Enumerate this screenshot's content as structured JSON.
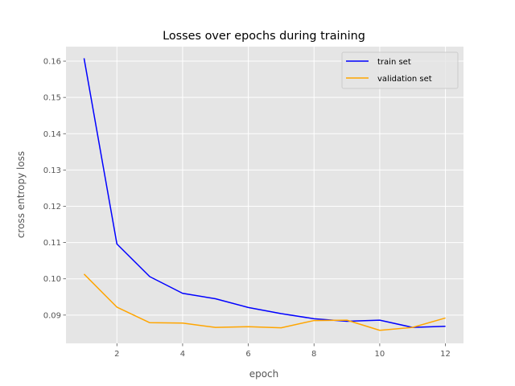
{
  "chart_data": {
    "type": "line",
    "title": "Losses over epochs during training",
    "xlabel": "epoch",
    "ylabel": "cross entropy loss",
    "x": [
      1,
      2,
      3,
      4,
      5,
      6,
      7,
      8,
      9,
      10,
      11,
      12
    ],
    "xlim": [
      0.45,
      12.55
    ],
    "ylim": [
      0.0822,
      0.164
    ],
    "xticks": [
      2,
      4,
      6,
      8,
      10,
      12
    ],
    "yticks": [
      0.09,
      0.1,
      0.11,
      0.12,
      0.13,
      0.14,
      0.15,
      0.16
    ],
    "xtick_labels": [
      "2",
      "4",
      "6",
      "8",
      "10",
      "12"
    ],
    "ytick_labels": [
      "0.09",
      "0.10",
      "0.11",
      "0.12",
      "0.13",
      "0.14",
      "0.15",
      "0.16"
    ],
    "grid": true,
    "legend_position": "top-right",
    "series": [
      {
        "name": "train set",
        "color": "#0000ff",
        "values": [
          0.1608,
          0.1096,
          0.1006,
          0.096,
          0.0945,
          0.0921,
          0.0904,
          0.089,
          0.0883,
          0.0886,
          0.0866,
          0.0869
        ]
      },
      {
        "name": "validation set",
        "color": "#ffa500",
        "values": [
          0.1013,
          0.0922,
          0.0879,
          0.0878,
          0.0866,
          0.0868,
          0.0865,
          0.0885,
          0.0886,
          0.0858,
          0.0866,
          0.0892
        ]
      }
    ]
  }
}
